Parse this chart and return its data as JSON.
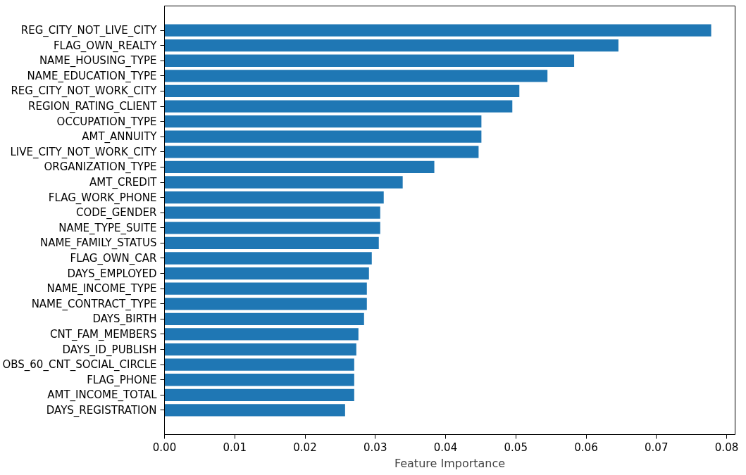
{
  "chart_data": {
    "type": "bar",
    "orientation": "horizontal",
    "xlabel": "Feature Importance",
    "categories": [
      "REG_CITY_NOT_LIVE_CITY",
      "FLAG_OWN_REALTY",
      "NAME_HOUSING_TYPE",
      "NAME_EDUCATION_TYPE",
      "REG_CITY_NOT_WORK_CITY",
      "REGION_RATING_CLIENT",
      "OCCUPATION_TYPE",
      "AMT_ANNUITY",
      "LIVE_CITY_NOT_WORK_CITY",
      "ORGANIZATION_TYPE",
      "AMT_CREDIT",
      "FLAG_WORK_PHONE",
      "CODE_GENDER",
      "NAME_TYPE_SUITE",
      "NAME_FAMILY_STATUS",
      "FLAG_OWN_CAR",
      "DAYS_EMPLOYED",
      "NAME_INCOME_TYPE",
      "NAME_CONTRACT_TYPE",
      "DAYS_BIRTH",
      "CNT_FAM_MEMBERS",
      "DAYS_ID_PUBLISH",
      "OBS_60_CNT_SOCIAL_CIRCLE",
      "FLAG_PHONE",
      "AMT_INCOME_TOTAL",
      "DAYS_REGISTRATION"
    ],
    "values": [
      0.0778,
      0.0646,
      0.0583,
      0.0545,
      0.0505,
      0.0495,
      0.0451,
      0.0451,
      0.0447,
      0.0384,
      0.0339,
      0.0312,
      0.0307,
      0.0307,
      0.0305,
      0.0295,
      0.0291,
      0.0288,
      0.0288,
      0.0284,
      0.0276,
      0.0273,
      0.027,
      0.027,
      0.027,
      0.0257
    ],
    "color": "#1f77b4",
    "xlim": [
      0,
      0.0812
    ],
    "xticks": [
      {
        "value": 0,
        "label": "0.00"
      },
      {
        "value": 0.01,
        "label": "0.01"
      },
      {
        "value": 0.02,
        "label": "0.02"
      },
      {
        "value": 0.03,
        "label": "0.03"
      },
      {
        "value": 0.04,
        "label": "0.04"
      },
      {
        "value": 0.05,
        "label": "0.05"
      },
      {
        "value": 0.06,
        "label": "0.06"
      },
      {
        "value": 0.07,
        "label": "0.07"
      },
      {
        "value": 0.08,
        "label": "0.08"
      }
    ],
    "grid": false
  }
}
